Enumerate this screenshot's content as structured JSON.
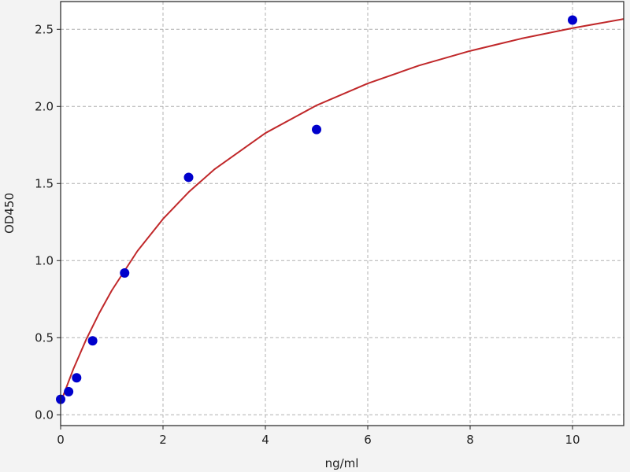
{
  "chart_data": {
    "type": "scatter",
    "title": "",
    "xlabel": "ng/ml",
    "ylabel": "OD450",
    "xlim": [
      0,
      11
    ],
    "ylim": [
      -0.07,
      2.68
    ],
    "grid": true,
    "x_ticks": [
      "0",
      "2",
      "4",
      "6",
      "8",
      "10"
    ],
    "y_ticks": [
      "0.0",
      "0.5",
      "1.0",
      "1.5",
      "2.0",
      "2.5"
    ],
    "points": {
      "color": "#0000cc",
      "x": [
        0,
        0.156,
        0.3125,
        0.625,
        1.25,
        2.5,
        5,
        10
      ],
      "y": [
        0.1,
        0.15,
        0.24,
        0.48,
        0.92,
        1.54,
        1.85,
        2.56
      ]
    },
    "fit_curve": {
      "color": "#c0282a",
      "x": [
        0,
        0.25,
        0.5,
        0.75,
        1,
        1.5,
        2,
        2.5,
        3,
        4,
        5,
        6,
        7,
        8,
        9,
        10,
        11
      ],
      "y": [
        0.08,
        0.298,
        0.489,
        0.657,
        0.807,
        1.062,
        1.27,
        1.444,
        1.591,
        1.827,
        2.007,
        2.149,
        2.265,
        2.36,
        2.44,
        2.508,
        2.567
      ]
    }
  }
}
